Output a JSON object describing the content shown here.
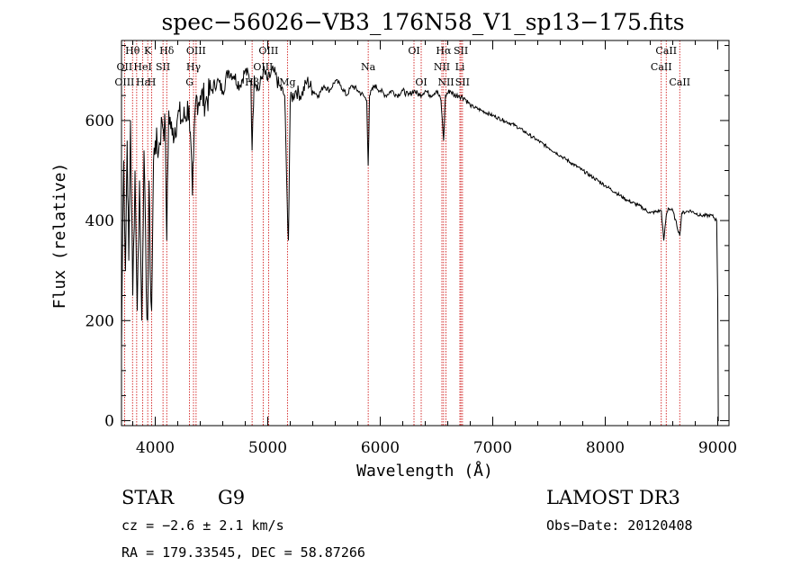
{
  "chart_data": {
    "type": "line",
    "title": "spec−56026−VB3_176N58_V1_sp13−175.fits",
    "xlabel": "Wavelength (Å)",
    "ylabel": "Flux (relative)",
    "xlim": [
      3700,
      9100
    ],
    "ylim": [
      -10,
      760
    ],
    "xticks": [
      4000,
      5000,
      6000,
      7000,
      8000,
      9000
    ],
    "yticks": [
      0,
      200,
      400,
      600
    ],
    "series": [
      {
        "name": "spectrum",
        "x": [
          3700,
          3710,
          3720,
          3735,
          3750,
          3765,
          3780,
          3800,
          3820,
          3840,
          3860,
          3880,
          3900,
          3920,
          3933,
          3945,
          3955,
          3968,
          3985,
          4000,
          4030,
          4060,
          4090,
          4102,
          4120,
          4150,
          4200,
          4250,
          4300,
          4330,
          4340,
          4360,
          4400,
          4450,
          4500,
          4550,
          4600,
          4650,
          4700,
          4750,
          4800,
          4850,
          4861,
          4880,
          4920,
          4960,
          5000,
          5050,
          5100,
          5150,
          5167,
          5173,
          5184,
          5200,
          5250,
          5300,
          5350,
          5400,
          5450,
          5500,
          5550,
          5600,
          5650,
          5700,
          5750,
          5800,
          5850,
          5880,
          5893,
          5905,
          5950,
          6000,
          6050,
          6100,
          6150,
          6200,
          6250,
          6300,
          6350,
          6400,
          6450,
          6500,
          6540,
          6563,
          6580,
          6620,
          6660,
          6700,
          6750,
          6800,
          6900,
          7000,
          7100,
          7200,
          7300,
          7400,
          7500,
          7600,
          7700,
          7800,
          7900,
          8000,
          8100,
          8200,
          8300,
          8400,
          8498,
          8520,
          8542,
          8560,
          8600,
          8662,
          8680,
          8750,
          8850,
          8950,
          8990,
          9000,
          9005,
          9010
        ],
        "values": [
          140,
          380,
          520,
          300,
          560,
          320,
          600,
          250,
          500,
          220,
          480,
          200,
          540,
          260,
          200,
          480,
          300,
          220,
          520,
          560,
          540,
          600,
          580,
          360,
          620,
          570,
          610,
          600,
          630,
          450,
          520,
          640,
          650,
          640,
          660,
          680,
          660,
          700,
          690,
          670,
          700,
          680,
          540,
          690,
          660,
          700,
          680,
          700,
          670,
          650,
          490,
          440,
          360,
          640,
          660,
          650,
          680,
          660,
          650,
          670,
          660,
          680,
          670,
          650,
          670,
          660,
          650,
          640,
          510,
          650,
          670,
          660,
          650,
          660,
          650,
          660,
          650,
          660,
          650,
          660,
          650,
          660,
          640,
          560,
          650,
          660,
          650,
          650,
          645,
          630,
          620,
          610,
          600,
          590,
          575,
          560,
          545,
          530,
          515,
          500,
          485,
          470,
          455,
          440,
          430,
          415,
          420,
          360,
          410,
          425,
          420,
          370,
          415,
          420,
          410,
          410,
          400,
          240,
          0,
          0
        ]
      }
    ],
    "line_markers": [
      {
        "label": "Hθ",
        "x": 3798,
        "row": 1
      },
      {
        "label": "OII",
        "x": 3727,
        "row": 2
      },
      {
        "label": "OIII",
        "x": 3727,
        "row": 3
      },
      {
        "label": "K",
        "x": 3933,
        "row": 1
      },
      {
        "label": "HeI",
        "x": 3889,
        "row": 2
      },
      {
        "label": "Hε",
        "x": 3889,
        "row": 3
      },
      {
        "label": "H",
        "x": 3968,
        "row": 3
      },
      {
        "label": "SII",
        "x": 4069,
        "row": 2
      },
      {
        "label": "Hδ",
        "x": 4102,
        "row": 1
      },
      {
        "label": "OIII",
        "x": 4363,
        "row": 1
      },
      {
        "label": "Hγ",
        "x": 4340,
        "row": 2
      },
      {
        "label": "G",
        "x": 4305,
        "row": 3
      },
      {
        "label": "OIII",
        "x": 5007,
        "row": 1
      },
      {
        "label": "OIII",
        "x": 4959,
        "row": 2
      },
      {
        "label": "Hβ",
        "x": 4861,
        "row": 3
      },
      {
        "label": "Mg",
        "x": 5175,
        "row": 3
      },
      {
        "label": "Na",
        "x": 5893,
        "row": 2
      },
      {
        "label": "OI",
        "x": 6300,
        "row": 1
      },
      {
        "label": "OI",
        "x": 6364,
        "row": 3
      },
      {
        "label": "Hα",
        "x": 6563,
        "row": 1
      },
      {
        "label": "NII",
        "x": 6548,
        "row": 2
      },
      {
        "label": "NII",
        "x": 6584,
        "row": 3
      },
      {
        "label": "SII",
        "x": 6717,
        "row": 1
      },
      {
        "label": "Li",
        "x": 6708,
        "row": 2
      },
      {
        "label": "SII",
        "x": 6731,
        "row": 3
      },
      {
        "label": "CaII",
        "x": 8542,
        "row": 1
      },
      {
        "label": "CaII",
        "x": 8498,
        "row": 2
      },
      {
        "label": "CaII",
        "x": 8662,
        "row": 3
      }
    ],
    "marker_lines_x": [
      3727,
      3798,
      3835,
      3889,
      3933,
      3968,
      4069,
      4102,
      4305,
      4340,
      4363,
      4861,
      4959,
      5007,
      5175,
      5893,
      6300,
      6364,
      6548,
      6563,
      6584,
      6708,
      6717,
      6731,
      8498,
      8542,
      8662
    ]
  },
  "info": {
    "object_class": "STAR",
    "subclass": "G9",
    "survey": "LAMOST DR3",
    "cz": "cz = −2.6 ± 2.1 km/s",
    "obs_date": "Obs−Date: 20120408",
    "radec": "RA = 179.33545, DEC =  58.87266"
  },
  "colors": {
    "marker": "#cc0000",
    "line": "#000000"
  }
}
